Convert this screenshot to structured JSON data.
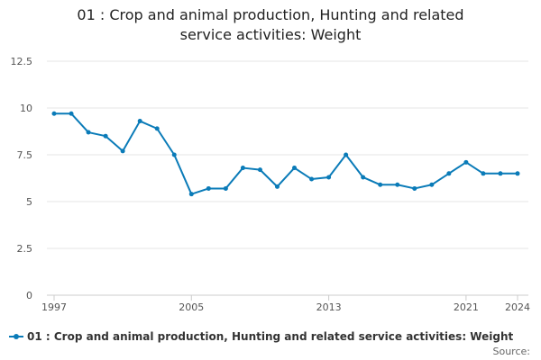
{
  "colors": {
    "series": "#0a7bb8",
    "grid": "#e6e6e6",
    "axis": "#cccccc"
  },
  "footer": {
    "source_label": "Source:"
  },
  "chart_data": {
    "type": "line",
    "title_lines": [
      "01 : Crop and animal production, Hunting and related",
      "service activities: Weight"
    ],
    "title": "01 : Crop and animal production, Hunting and related service activities: Weight",
    "xlabel": "",
    "ylabel": "",
    "xlim": [
      1997,
      2024
    ],
    "ylim": [
      0,
      12.5
    ],
    "y_ticks": [
      0,
      2.5,
      5,
      7.5,
      10,
      12.5
    ],
    "y_tick_labels": [
      "0",
      "2.5",
      "5",
      "7.5",
      "10",
      "12.5"
    ],
    "x_ticks": [
      1997,
      2005,
      2013,
      2021,
      2024
    ],
    "x_tick_labels": [
      "1997",
      "2005",
      "2013",
      "2021",
      "2024"
    ],
    "grid": true,
    "legend_position": "bottom-left",
    "series": [
      {
        "name": "01 : Crop and animal production, Hunting and related service activities: Weight",
        "x": [
          1997,
          1998,
          1999,
          2000,
          2001,
          2002,
          2003,
          2004,
          2005,
          2006,
          2007,
          2008,
          2009,
          2010,
          2011,
          2012,
          2013,
          2014,
          2015,
          2016,
          2017,
          2018,
          2019,
          2020,
          2021,
          2022,
          2023,
          2024
        ],
        "values": [
          9.7,
          9.7,
          8.7,
          8.5,
          7.7,
          9.3,
          8.9,
          7.5,
          5.4,
          5.7,
          5.7,
          6.8,
          6.7,
          5.8,
          6.8,
          6.2,
          6.3,
          7.5,
          6.3,
          5.9,
          5.9,
          5.7,
          5.9,
          6.5,
          7.1,
          6.5,
          6.5,
          6.5
        ]
      }
    ]
  }
}
